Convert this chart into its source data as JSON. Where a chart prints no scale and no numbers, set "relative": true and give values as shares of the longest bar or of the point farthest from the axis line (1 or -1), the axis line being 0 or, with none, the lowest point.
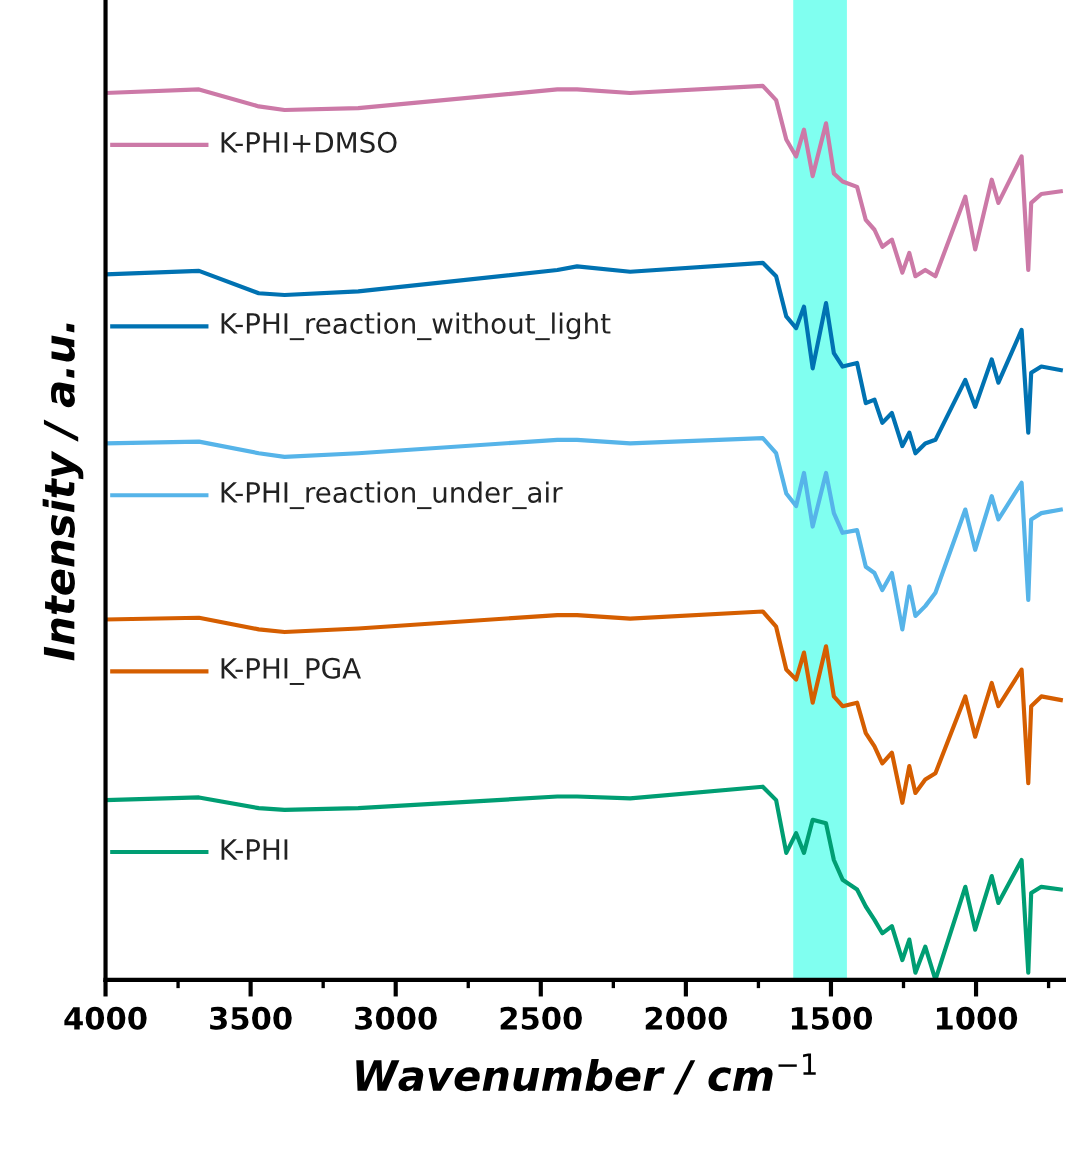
{
  "chart_data": {
    "type": "line",
    "relative": true,
    "legend": "left",
    "xlabel": "Wavenumber / cm$^{−1}$",
    "ylabel": "Intensity / a.u.",
    "xlim": [
      4000,
      690
    ],
    "xticks": [
      4000,
      3500,
      3000,
      2500,
      2000,
      1500,
      1000
    ],
    "x": [
      4000,
      3678,
      3472,
      3383,
      3129,
      2443,
      2375,
      2192,
      1735,
      1689,
      1654,
      1620,
      1593,
      1563,
      1517,
      1490,
      1460,
      1410,
      1380,
      1350,
      1323,
      1290,
      1254,
      1230,
      1209,
      1175,
      1140,
      1037,
      1003,
      946,
      923,
      843,
      820,
      810,
      775,
      708
    ],
    "bands": [
      {
        "axis": "x",
        "from": 1630,
        "to": 1445,
        "color": "#80fff0"
      }
    ],
    "series": [
      {
        "name": "K-PHI+DMSO",
        "color": "#cc79a7",
        "values": [
          0.992,
          0.996,
          0.977,
          0.973,
          0.975,
          0.996,
          0.996,
          0.992,
          1.0,
          0.984,
          0.94,
          0.921,
          0.951,
          0.899,
          0.958,
          0.902,
          0.893,
          0.887,
          0.85,
          0.839,
          0.82,
          0.828,
          0.791,
          0.813,
          0.787,
          0.794,
          0.787,
          0.876,
          0.817,
          0.895,
          0.869,
          0.921,
          0.794,
          0.869,
          0.879,
          0.882
        ]
      },
      {
        "name": "K-PHI_reaction_without_light",
        "color": "#0072b2",
        "values": [
          0.789,
          0.793,
          0.768,
          0.766,
          0.77,
          0.794,
          0.798,
          0.792,
          0.802,
          0.787,
          0.742,
          0.729,
          0.753,
          0.684,
          0.757,
          0.701,
          0.686,
          0.69,
          0.645,
          0.649,
          0.623,
          0.634,
          0.597,
          0.612,
          0.589,
          0.6,
          0.604,
          0.671,
          0.641,
          0.694,
          0.668,
          0.727,
          0.612,
          0.679,
          0.686,
          0.682
        ]
      },
      {
        "name": "K-PHI_reaction_under_air",
        "color": "#56b4e9",
        "values": [
          0.6,
          0.602,
          0.589,
          0.585,
          0.589,
          0.604,
          0.604,
          0.6,
          0.606,
          0.589,
          0.544,
          0.53,
          0.567,
          0.507,
          0.567,
          0.522,
          0.5,
          0.503,
          0.462,
          0.455,
          0.436,
          0.455,
          0.392,
          0.44,
          0.407,
          0.418,
          0.433,
          0.526,
          0.481,
          0.541,
          0.515,
          0.556,
          0.425,
          0.515,
          0.522,
          0.526
        ]
      },
      {
        "name": "K-PHI_PGA",
        "color": "#d55e00",
        "values": [
          0.403,
          0.405,
          0.392,
          0.389,
          0.393,
          0.408,
          0.408,
          0.404,
          0.412,
          0.395,
          0.347,
          0.336,
          0.366,
          0.31,
          0.373,
          0.317,
          0.306,
          0.31,
          0.276,
          0.261,
          0.242,
          0.254,
          0.198,
          0.239,
          0.209,
          0.224,
          0.231,
          0.317,
          0.272,
          0.332,
          0.306,
          0.347,
          0.22,
          0.306,
          0.317,
          0.313
        ]
      },
      {
        "name": "K-PHI",
        "color": "#009e73",
        "values": [
          0.201,
          0.204,
          0.192,
          0.19,
          0.192,
          0.205,
          0.205,
          0.203,
          0.216,
          0.201,
          0.142,
          0.164,
          0.142,
          0.179,
          0.175,
          0.134,
          0.112,
          0.101,
          0.082,
          0.067,
          0.052,
          0.06,
          0.022,
          0.045,
          0.008,
          0.037,
          0.0,
          0.104,
          0.056,
          0.116,
          0.086,
          0.134,
          0.008,
          0.097,
          0.104,
          0.101
        ]
      }
    ]
  }
}
